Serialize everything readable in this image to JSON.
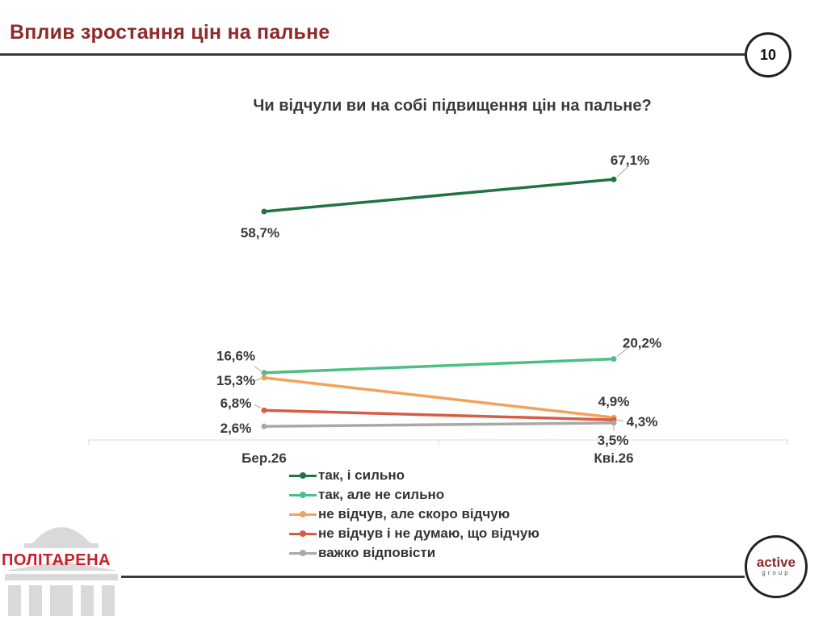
{
  "header": {
    "title": "Вплив зростання цін на пальне",
    "page_number": "10"
  },
  "logos": {
    "left_brand": "ПОЛІТАРЕНА",
    "right_brand_top": "active",
    "right_brand_bottom": "group"
  },
  "chart_data": {
    "type": "line",
    "title": "Чи відчули ви на собі підвищення цін на пальне?",
    "categories": [
      "Бер.26",
      "Кві.26"
    ],
    "ylim": [
      0,
      80
    ],
    "grid": false,
    "legend_position": "bottom",
    "series": [
      {
        "name": "так, і сильно",
        "values": [
          58.7,
          67.1
        ],
        "labels": [
          "58,7%",
          "67,1%"
        ],
        "color": "#217346"
      },
      {
        "name": "так, але не сильно",
        "values": [
          16.6,
          20.2
        ],
        "labels": [
          "16,6%",
          "20,2%"
        ],
        "color": "#4dbf85"
      },
      {
        "name": "не відчув, але скоро відчую",
        "values": [
          15.3,
          4.9
        ],
        "labels": [
          "15,3%",
          "4,9%"
        ],
        "color": "#f2a25c"
      },
      {
        "name": "не відчув і не думаю, що відчую",
        "values": [
          6.8,
          4.3
        ],
        "labels": [
          "6,8%",
          "4,3%"
        ],
        "color": "#d65d45"
      },
      {
        "name": "важко відповісти",
        "values": [
          2.6,
          3.5
        ],
        "labels": [
          "2,6%",
          "3,5%"
        ],
        "color": "#a8a8a8"
      }
    ]
  }
}
